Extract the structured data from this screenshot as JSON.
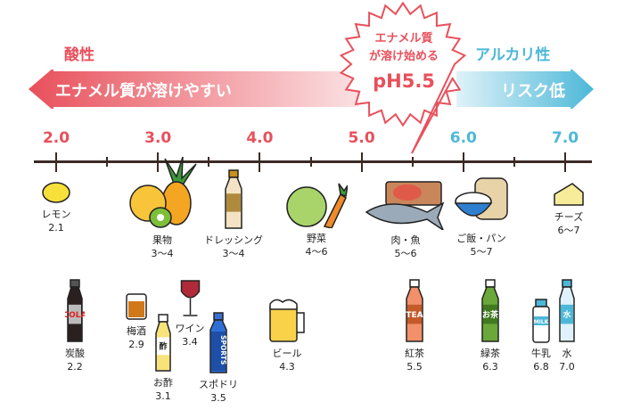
{
  "header": {
    "acid_label": "酸性",
    "alkaline_label": "アルカリ性",
    "acid_band_text": "エナメル質が溶けやすい",
    "alkaline_band_text": "リスク低",
    "burst": {
      "line1": "エナメル質",
      "line2": "が溶け始める",
      "line3": "pH5.5"
    },
    "colors": {
      "acid": "#e8505b",
      "alkaline": "#4cb8d8",
      "axis": "#3b2a24"
    }
  },
  "axis": {
    "ticks": [
      {
        "label": "2.0",
        "value": 2.0,
        "color": "#e8505b"
      },
      {
        "label": "3.0",
        "value": 3.0,
        "color": "#e8505b"
      },
      {
        "label": "4.0",
        "value": 4.0,
        "color": "#e8505b"
      },
      {
        "label": "5.0",
        "value": 5.0,
        "color": "#e8505b"
      },
      {
        "label": "6.0",
        "value": 6.0,
        "color": "#4cb8d8"
      },
      {
        "label": "7.0",
        "value": 7.0,
        "color": "#4cb8d8"
      }
    ],
    "minor_ticks": [
      2.5,
      3.5,
      4.5,
      5.5,
      6.5
    ]
  },
  "foods": [
    {
      "name": "レモン",
      "ph": "2.1",
      "icon": "lemon-icon"
    },
    {
      "name": "果物",
      "ph": "3〜4",
      "icon": "fruits-icon"
    },
    {
      "name": "ドレッシング",
      "ph": "3〜4",
      "icon": "dressing-bottle-icon"
    },
    {
      "name": "野菜",
      "ph": "4〜6",
      "icon": "vegetables-icon"
    },
    {
      "name": "肉・魚",
      "ph": "5〜6",
      "icon": "meat-fish-icon"
    },
    {
      "name": "ご飯・パン",
      "ph": "5〜7",
      "icon": "rice-bread-icon"
    },
    {
      "name": "チーズ",
      "ph": "6〜7",
      "icon": "cheese-icon"
    }
  ],
  "drinks": [
    {
      "name": "炭酸",
      "ph": "2.2",
      "icon": "cola-bottle-icon",
      "bottle_text": "COLA"
    },
    {
      "name": "梅酒",
      "ph": "2.9",
      "icon": "umeshu-glass-icon"
    },
    {
      "name": "お酢",
      "ph": "3.1",
      "icon": "vinegar-bottle-icon",
      "bottle_text": "酢"
    },
    {
      "name": "ワイン",
      "ph": "3.4",
      "icon": "wine-glass-icon"
    },
    {
      "name": "スポドリ",
      "ph": "3.5",
      "icon": "sports-drink-icon",
      "bottle_text": "SPORTS"
    },
    {
      "name": "ビール",
      "ph": "4.3",
      "icon": "beer-mug-icon"
    },
    {
      "name": "紅茶",
      "ph": "5.5",
      "icon": "tea-bottle-icon",
      "bottle_text": "TEA"
    },
    {
      "name": "緑茶",
      "ph": "6.3",
      "icon": "green-tea-bottle-icon",
      "bottle_text": "お茶"
    },
    {
      "name": "牛乳",
      "ph": "6.8",
      "icon": "milk-bottle-icon",
      "bottle_text": "MILK"
    },
    {
      "name": "水",
      "ph": "7.0",
      "icon": "water-bottle-icon",
      "bottle_text": "水"
    }
  ]
}
